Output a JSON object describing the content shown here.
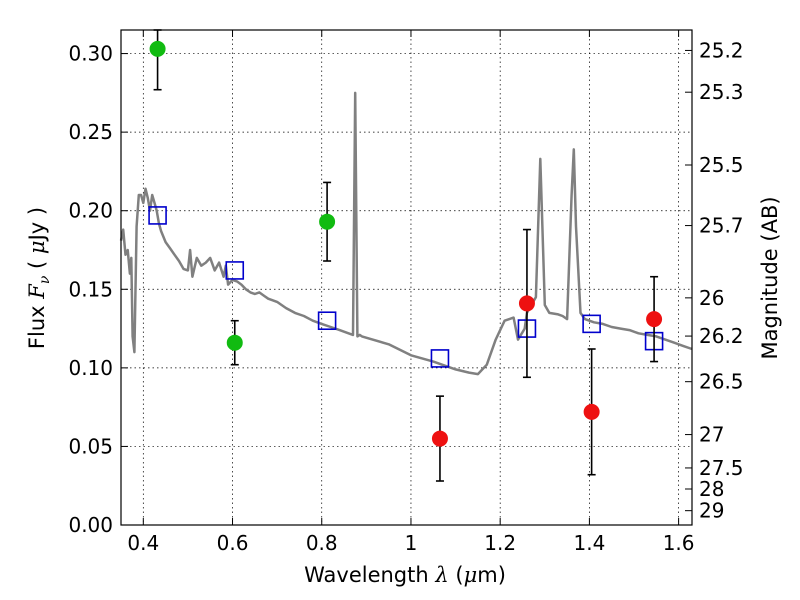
{
  "chart_data": {
    "type": "scatter",
    "xlabel": "Wavelength",
    "xlabel_symbol": "λ",
    "xlabel_unit_prefix": "(",
    "xlabel_unit_mu": "μ",
    "xlabel_unit_suffix": "m)",
    "ylabel": "Flux",
    "ylabel_symbol": "F",
    "ylabel_symbol_sub": "ν",
    "ylabel_unit_prefix": "(",
    "ylabel_unit_mu": "μ",
    "ylabel_unit_suffix": "Jy )",
    "y2label": "Magnitude (AB)",
    "xlim": [
      0.35,
      1.63
    ],
    "ylim": [
      0.0,
      0.315
    ],
    "grid": true,
    "x_ticks": [
      0.4,
      0.6,
      0.8,
      1.0,
      1.2,
      1.4,
      1.6
    ],
    "x_tick_labels": [
      "0.4",
      "0.6",
      "0.8",
      "1",
      "1.2",
      "1.4",
      "1.6"
    ],
    "y_ticks": [
      0.0,
      0.05,
      0.1,
      0.15,
      0.2,
      0.25,
      0.3
    ],
    "y_tick_labels": [
      "0.00",
      "0.05",
      "0.10",
      "0.15",
      "0.20",
      "0.25",
      "0.30"
    ],
    "y2_ticks": [
      25.2,
      25.3,
      25.5,
      25.7,
      26,
      26.2,
      26.5,
      27,
      27.5,
      28,
      29
    ],
    "y2_tick_labels": [
      "25.2",
      "25.3",
      "25.5",
      "25.7",
      "26",
      "26.2",
      "26.5",
      "27",
      "27.5",
      "28",
      "29"
    ],
    "colors": {
      "green_points": "#11bb11",
      "red_points": "#ee1111",
      "model_squares": "#0000cc",
      "spectrum": "#808080",
      "errorbar": "#000000",
      "grid": "#000000"
    },
    "series": [
      {
        "kind": "spectrum_line",
        "x": [
          0.35,
          0.355,
          0.36,
          0.365,
          0.37,
          0.373,
          0.376,
          0.38,
          0.385,
          0.39,
          0.395,
          0.4,
          0.405,
          0.41,
          0.415,
          0.42,
          0.425,
          0.43,
          0.435,
          0.44,
          0.45,
          0.46,
          0.47,
          0.48,
          0.49,
          0.5,
          0.505,
          0.51,
          0.52,
          0.53,
          0.54,
          0.55,
          0.56,
          0.57,
          0.58,
          0.585,
          0.59,
          0.6,
          0.61,
          0.62,
          0.63,
          0.64,
          0.65,
          0.66,
          0.67,
          0.68,
          0.69,
          0.7,
          0.72,
          0.74,
          0.76,
          0.78,
          0.8,
          0.82,
          0.84,
          0.86,
          0.87,
          0.875,
          0.88,
          0.885,
          0.89,
          0.95,
          1.0,
          1.05,
          1.1,
          1.13,
          1.15,
          1.17,
          1.19,
          1.21,
          1.23,
          1.24,
          1.255,
          1.26,
          1.27,
          1.28,
          1.29,
          1.3,
          1.31,
          1.33,
          1.34,
          1.35,
          1.36,
          1.365,
          1.37,
          1.38,
          1.39,
          1.41,
          1.43,
          1.45,
          1.47,
          1.49,
          1.51,
          1.53,
          1.55,
          1.57,
          1.59,
          1.61,
          1.63
        ],
        "y": [
          0.181,
          0.188,
          0.172,
          0.175,
          0.16,
          0.17,
          0.12,
          0.11,
          0.19,
          0.21,
          0.21,
          0.205,
          0.214,
          0.208,
          0.2,
          0.21,
          0.205,
          0.2,
          0.192,
          0.187,
          0.18,
          0.176,
          0.172,
          0.168,
          0.163,
          0.162,
          0.175,
          0.158,
          0.17,
          0.165,
          0.167,
          0.17,
          0.162,
          0.167,
          0.158,
          0.165,
          0.153,
          0.156,
          0.155,
          0.153,
          0.15,
          0.148,
          0.147,
          0.148,
          0.146,
          0.144,
          0.143,
          0.142,
          0.138,
          0.135,
          0.133,
          0.13,
          0.128,
          0.126,
          0.124,
          0.122,
          0.121,
          0.275,
          0.12,
          0.121,
          0.12,
          0.115,
          0.108,
          0.104,
          0.099,
          0.097,
          0.096,
          0.102,
          0.118,
          0.13,
          0.132,
          0.118,
          0.125,
          0.135,
          0.14,
          0.145,
          0.233,
          0.14,
          0.135,
          0.134,
          0.133,
          0.131,
          0.21,
          0.239,
          0.19,
          0.135,
          0.131,
          0.129,
          0.128,
          0.126,
          0.125,
          0.124,
          0.122,
          0.121,
          0.12,
          0.118,
          0.116,
          0.114,
          0.112
        ]
      },
      {
        "kind": "points_with_errors",
        "color_key": "green_points",
        "points": [
          {
            "x": 0.432,
            "y": 0.303,
            "err": 0.026
          },
          {
            "x": 0.605,
            "y": 0.116,
            "err": 0.014
          },
          {
            "x": 0.812,
            "y": 0.193,
            "err": 0.025
          }
        ]
      },
      {
        "kind": "points_with_errors",
        "color_key": "red_points",
        "points": [
          {
            "x": 1.065,
            "y": 0.055,
            "err": 0.027
          },
          {
            "x": 1.26,
            "y": 0.141,
            "err": 0.047
          },
          {
            "x": 1.405,
            "y": 0.072,
            "err": 0.04
          },
          {
            "x": 1.545,
            "y": 0.131,
            "err": 0.027
          }
        ]
      },
      {
        "kind": "open_squares",
        "color_key": "model_squares",
        "points": [
          {
            "x": 0.432,
            "y": 0.197
          },
          {
            "x": 0.605,
            "y": 0.162
          },
          {
            "x": 0.812,
            "y": 0.13
          },
          {
            "x": 1.065,
            "y": 0.106
          },
          {
            "x": 1.26,
            "y": 0.125
          },
          {
            "x": 1.405,
            "y": 0.128
          },
          {
            "x": 1.545,
            "y": 0.117
          }
        ]
      }
    ]
  }
}
